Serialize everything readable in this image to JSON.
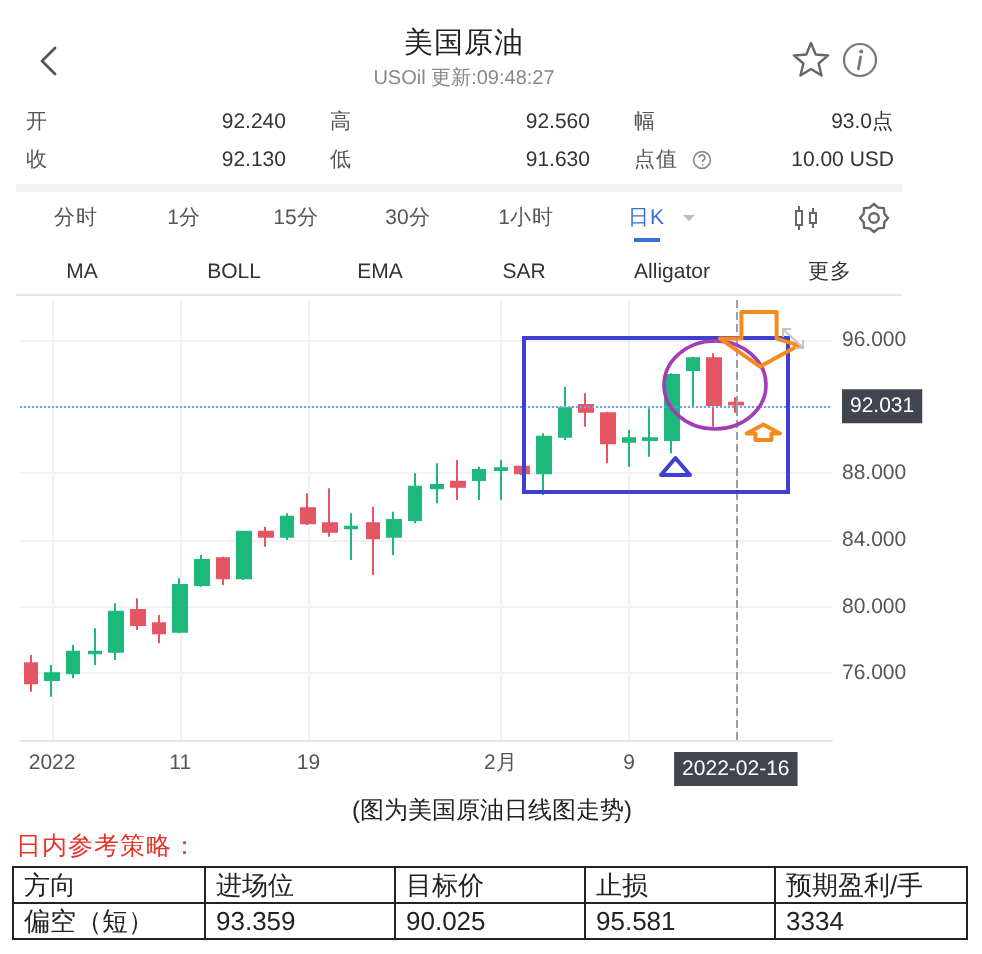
{
  "chart_data": {
    "type": "candlestick",
    "title": "美国原油",
    "subtitle": "USOil 更新:09:48:27",
    "categories": [
      null,
      "2022",
      null,
      null,
      null,
      null,
      null,
      "11",
      null,
      null,
      null,
      null,
      null,
      "19",
      null,
      null,
      null,
      null,
      null,
      null,
      null,
      null,
      "2月",
      null,
      null,
      null,
      null,
      null,
      "9",
      null,
      null,
      null,
      null,
      "2022-02-16",
      null,
      null,
      null,
      null
    ],
    "ohlc": [
      [
        76.6,
        77.1,
        74.9,
        75.4
      ],
      [
        75.6,
        76.5,
        74.6,
        76.0
      ],
      [
        76.0,
        77.7,
        75.7,
        77.3
      ],
      [
        77.2,
        78.7,
        76.5,
        77.3
      ],
      [
        77.3,
        80.2,
        76.8,
        79.7
      ],
      [
        79.8,
        80.5,
        78.6,
        78.9
      ],
      [
        79.0,
        79.5,
        77.8,
        78.4
      ],
      [
        78.5,
        81.7,
        78.4,
        81.3
      ],
      [
        81.3,
        83.1,
        81.2,
        82.8
      ],
      [
        82.9,
        83.0,
        81.3,
        81.7
      ],
      [
        81.7,
        84.5,
        81.6,
        84.5
      ],
      [
        84.5,
        84.8,
        83.6,
        84.2
      ],
      [
        84.2,
        85.6,
        84.0,
        85.4
      ],
      [
        85.9,
        86.8,
        84.9,
        85.0
      ],
      [
        85.0,
        87.1,
        84.2,
        84.5
      ],
      [
        84.7,
        85.6,
        82.8,
        84.8
      ],
      [
        85.0,
        86.0,
        81.9,
        84.1
      ],
      [
        84.2,
        85.7,
        83.1,
        85.2
      ],
      [
        85.2,
        88.0,
        85.0,
        87.2
      ],
      [
        87.1,
        88.6,
        86.2,
        87.3
      ],
      [
        87.5,
        88.8,
        86.4,
        87.2
      ],
      [
        87.6,
        88.4,
        86.4,
        88.2
      ],
      [
        88.2,
        88.8,
        86.4,
        88.3
      ],
      [
        88.4,
        88.4,
        87.9,
        88.0
      ],
      [
        88.0,
        90.4,
        86.7,
        90.2
      ],
      [
        90.2,
        93.2,
        90.0,
        91.9
      ],
      [
        92.1,
        92.8,
        90.8,
        91.7
      ],
      [
        91.6,
        91.7,
        88.6,
        89.8
      ],
      [
        89.9,
        90.6,
        88.4,
        90.1
      ],
      [
        90.0,
        91.9,
        89.0,
        90.1
      ],
      [
        90.0,
        94.0,
        89.2,
        93.9
      ],
      [
        94.2,
        95.0,
        92.0,
        94.9
      ],
      [
        94.9,
        95.2,
        90.8,
        92.1
      ],
      [
        92.24,
        92.56,
        91.63,
        92.13
      ],
      null,
      null,
      null,
      null
    ],
    "colors": [
      "#e45663",
      "#1db87b",
      "#1db87b",
      "#1db87b",
      "#1db87b",
      "#e45663",
      "#e45663",
      "#1db87b",
      "#1db87b",
      "#e45663",
      "#1db87b",
      "#e45663",
      "#1db87b",
      "#e45663",
      "#e45663",
      "#1db87b",
      "#e45663",
      "#1db87b",
      "#1db87b",
      "#1db87b",
      "#e45663",
      "#1db87b",
      "#1db87b",
      "#e45663",
      "#1db87b",
      "#1db87b",
      "#e45663",
      "#e45663",
      "#1db87b",
      "#1db87b",
      "#1db87b",
      "#1db87b",
      "#e45663",
      "#e45663",
      null,
      null,
      null,
      null
    ],
    "ylim": [
      72,
      98.4
    ],
    "yticks": [
      {
        "value": 76,
        "label": "76.000"
      },
      {
        "value": 80,
        "label": "80.000"
      },
      {
        "value": 84,
        "label": "84.000"
      },
      {
        "value": 88,
        "label": "88.000"
      },
      {
        "value": 92,
        "label": null
      },
      {
        "value": 96,
        "label": "96.000"
      }
    ],
    "grid": true,
    "ref_lines": [
      {
        "axis": "y",
        "value": 92.031,
        "label": "92.031",
        "color": "#6fa0e8",
        "line_style": "dotted"
      },
      {
        "axis": "x",
        "value": "2022-02-16",
        "color": "#9aa0a6",
        "line_style": "dashed"
      }
    ],
    "annotations": [
      "开",
      "92.240",
      "高",
      "92.560",
      "幅",
      "93.0点",
      "收",
      "92.130",
      "低",
      "91.630",
      "点值",
      "10.00 USD",
      "分时",
      "1分",
      "15分",
      "30分",
      "1小时",
      "日K",
      "MA",
      "BOLL",
      "EMA",
      "SAR",
      "Alligator",
      "更多",
      "(图为美国原油日线图走势)",
      "日内参考策略：",
      "方向",
      "进场位",
      "目标价",
      "止损",
      "预期盈利/手",
      "偏空（短）",
      "93.359",
      "90.025",
      "95.581",
      "3334"
    ]
  }
}
